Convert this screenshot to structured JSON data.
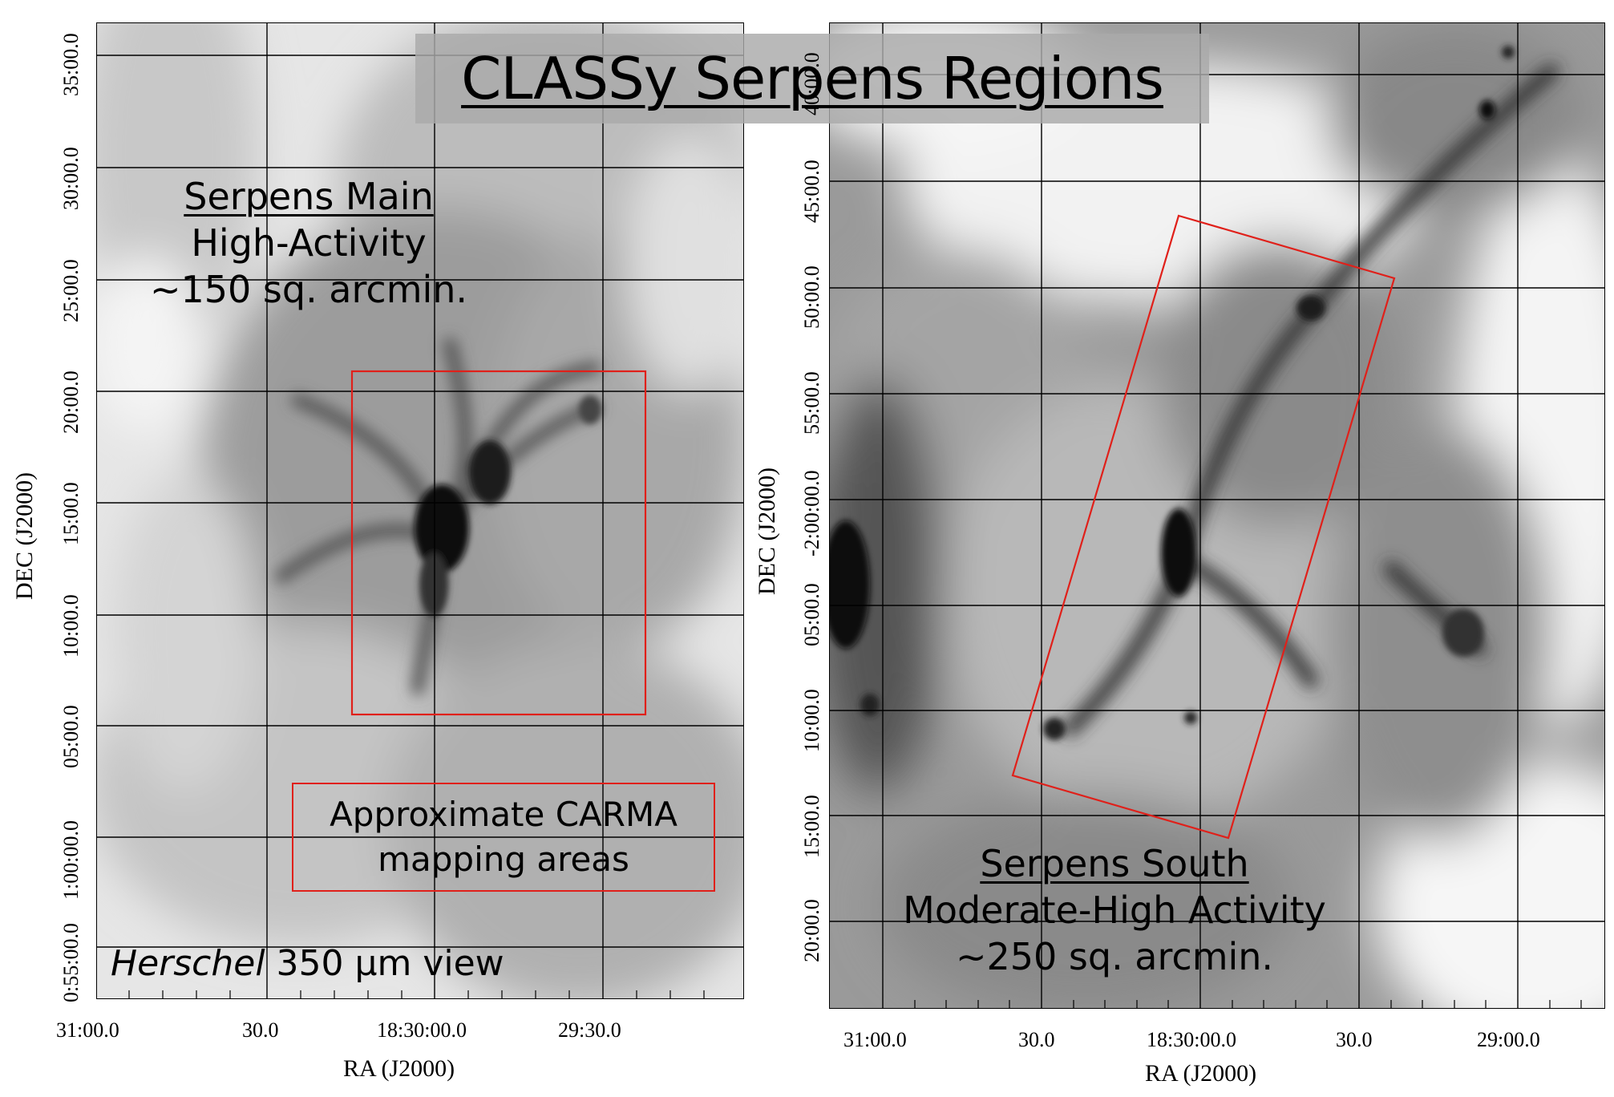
{
  "title": "CLASSy Serpens  Regions",
  "left_panel": {
    "region_name": "Serpens Main",
    "activity": "High-Activity",
    "area": "~150 sq. arcmin.",
    "legend_line1": "Approximate CARMA",
    "legend_line2": "mapping areas",
    "view_instrument": "Herschel",
    "view_band": " 350 µm view",
    "x_title": "RA (J2000)",
    "y_title": "DEC (J2000)",
    "x_ticks": [
      "31:00.0",
      "30.0",
      "18:30:00.0",
      "29:30.0"
    ],
    "y_ticks": [
      "35:00.0",
      "30:00.0",
      "25:00.0",
      "20:00.0",
      "15:00.0",
      "10:00.0",
      "05:00.0",
      "1:00:00.0",
      "0:55:00.0"
    ]
  },
  "right_panel": {
    "region_name": "Serpens South",
    "activity": "Moderate-High Activity",
    "area": "~250 sq. arcmin.",
    "x_title": "RA (J2000)",
    "y_title": "DEC (J2000)",
    "x_ticks": [
      "31:00.0",
      "30.0",
      "18:30:00.0",
      "30.0",
      "29:00.0"
    ],
    "y_ticks": [
      "40:00.0",
      "45:00.0",
      "50:00.0",
      "55:00.0",
      "-2:00:00.0",
      "05:00.0",
      "10:00.0",
      "15:00.0",
      "20:00.0"
    ]
  },
  "colors": {
    "box": "#e0201a",
    "grid": "#000000"
  }
}
